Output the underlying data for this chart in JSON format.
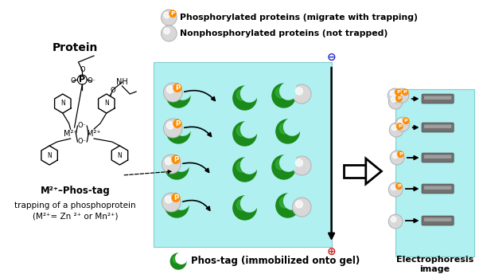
{
  "bg_color": "#ffffff",
  "cyan_bg": "#b0f0f0",
  "green_dark": "#1a8a1a",
  "green_light": "#44bb44",
  "orange_color": "#FF8C00",
  "protein_light": "#d8d8d8",
  "protein_mid": "#b0b0b0",
  "band_dark": "#707070",
  "band_light": "#aaaaaa",
  "legend_text1": "Phosphorylated proteins (migrate with trapping)",
  "legend_text2": "Nonphosphorylated proteins (not trapped)",
  "phostag_label": "Phos-tag (immobilized onto gel)",
  "electrophoresis_label": "Electrophoresis\nimage",
  "protein_label": "Protein",
  "m2_label1": "M²⁺–Phos-tag",
  "m2_label2": "trapping of a phosphoprotein",
  "m2_label3": "(M²⁺= Zn ²⁺ or Mn²⁺)"
}
